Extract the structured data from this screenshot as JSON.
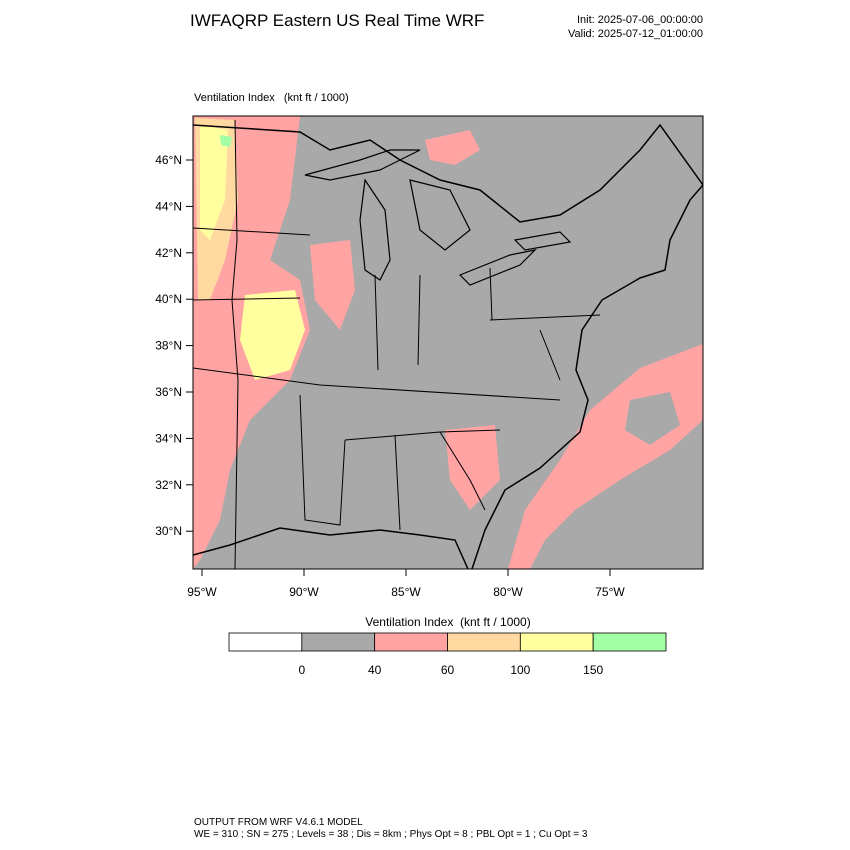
{
  "header": {
    "title": "IWFAQRP Eastern US Real Time WRF",
    "init": "Init: 2025-07-06_00:00:00",
    "valid": "Valid: 2025-07-12_01:00:00"
  },
  "map": {
    "label": "Ventilation Index   (knt ft / 1000)",
    "lat_labels": [
      "46°N",
      "44°N",
      "42°N",
      "40°N",
      "38°N",
      "36°N",
      "34°N",
      "32°N",
      "30°N"
    ],
    "lon_labels": [
      "95°W",
      "90°W",
      "85°W",
      "80°W",
      "75°W"
    ]
  },
  "colorbar": {
    "title": "Ventilation Index  (knt ft / 1000)",
    "colors": [
      "#ffffff",
      "#a9a9a9",
      "#ffa3a3",
      "#ffd9a0",
      "#ffff9f",
      "#a3ffa3"
    ],
    "ticks": [
      0,
      40,
      60,
      100,
      150
    ]
  },
  "footer": {
    "line1": "OUTPUT FROM WRF V4.6.1 MODEL",
    "line2": "WE = 310 ; SN = 275 ; Levels = 38 ; Dis = 8km ; Phys Opt = 8 ; PBL Opt = 1 ; Cu Opt = 3"
  }
}
